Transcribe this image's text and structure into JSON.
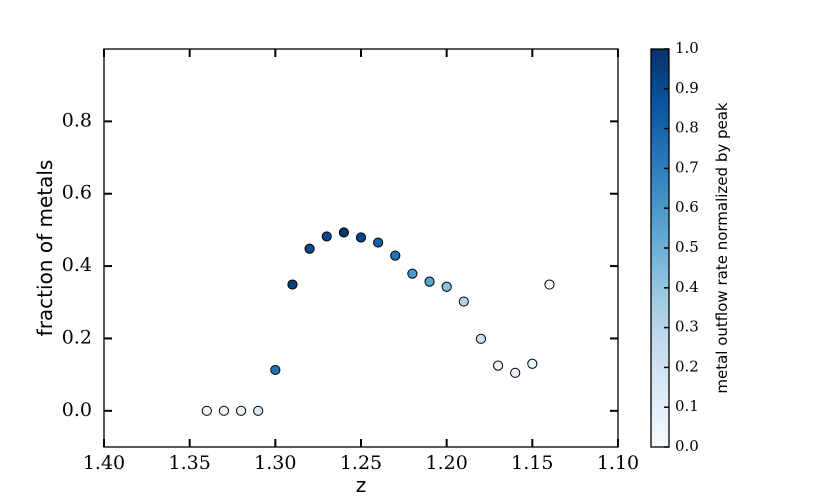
{
  "chart_data": {
    "type": "scatter",
    "x_label": "z",
    "y_label": "fraction of metals",
    "x": [
      1.34,
      1.33,
      1.32,
      1.31,
      1.3,
      1.29,
      1.28,
      1.27,
      1.26,
      1.25,
      1.24,
      1.23,
      1.22,
      1.21,
      1.2,
      1.19,
      1.18,
      1.17,
      1.16,
      1.15,
      1.14
    ],
    "values": [
      0,
      0,
      0,
      0,
      0.113,
      0.349,
      0.448,
      0.482,
      0.493,
      0.479,
      0.465,
      0.429,
      0.379,
      0.357,
      0.343,
      0.302,
      0.199,
      0.125,
      0.105,
      0.13,
      0.349
    ],
    "color_values": [
      0.02,
      0.03,
      0.05,
      0.15,
      0.75,
      0.95,
      0.9,
      0.92,
      1.0,
      0.92,
      0.82,
      0.75,
      0.6,
      0.55,
      0.42,
      0.3,
      0.2,
      0.05,
      0.05,
      0.05,
      0.0
    ],
    "colormap": "Blues",
    "xlim": [
      1.4,
      1.1
    ],
    "xticks": [
      {
        "value": 1.4,
        "label": "1.40"
      },
      {
        "value": 1.35,
        "label": "1.35"
      },
      {
        "value": 1.3,
        "label": "1.30"
      },
      {
        "value": 1.25,
        "label": "1.25"
      },
      {
        "value": 1.2,
        "label": "1.20"
      },
      {
        "value": 1.15,
        "label": "1.15"
      },
      {
        "value": 1.1,
        "label": "1.10"
      }
    ],
    "ylim": [
      -0.1,
      1.0
    ],
    "yticks": [
      {
        "value": 0,
        "label": "0.0"
      },
      0.2,
      0.4,
      0.6,
      0.8
    ],
    "colorbar": {
      "label": "metal outflow rate normalized by peak",
      "lim": [
        0,
        1
      ],
      "ticks": [
        {
          "value": 0,
          "label": "0.0"
        },
        0.1,
        0.2,
        0.3,
        0.4,
        0.5,
        0.6,
        0.7,
        0.8,
        0.9,
        {
          "value": 1,
          "label": "1.0"
        }
      ]
    }
  }
}
